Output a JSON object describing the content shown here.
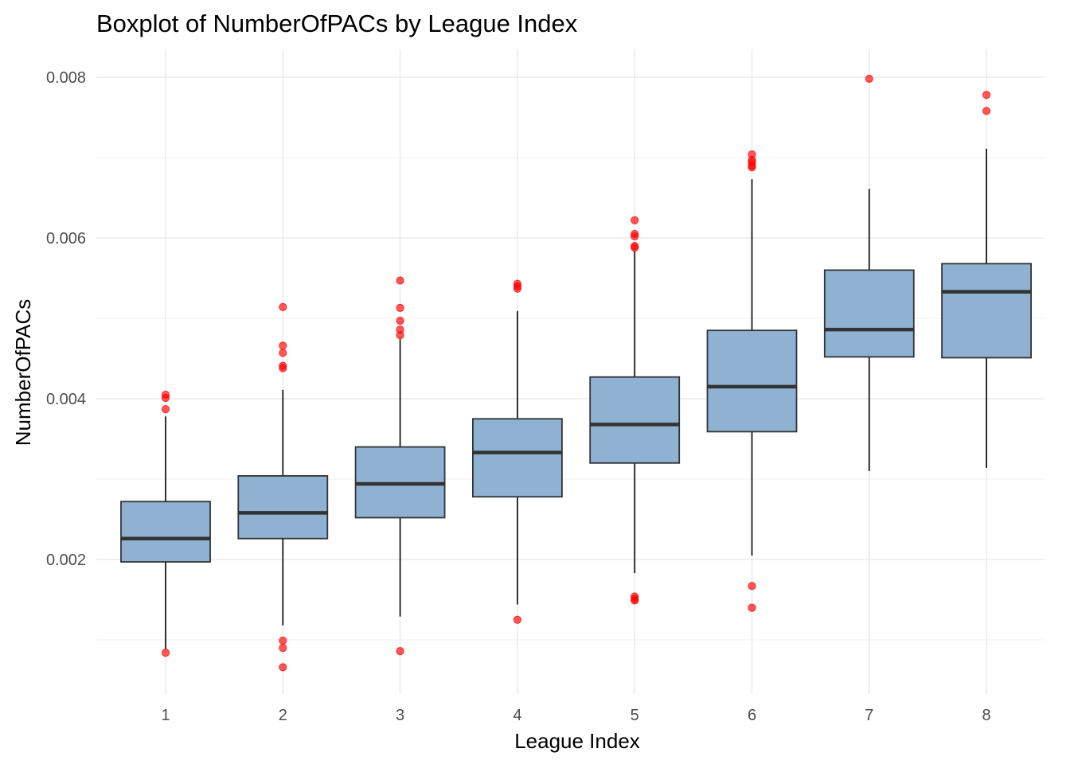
{
  "chart_data": {
    "type": "boxplot",
    "title": "Boxplot of NumberOfPACs by League Index",
    "xlabel": "League Index",
    "ylabel": "NumberOfPACs",
    "categories": [
      "1",
      "2",
      "3",
      "4",
      "5",
      "6",
      "7",
      "8"
    ],
    "ylim": [
      0.00062,
      0.00815
    ],
    "yticks": [
      0.002,
      0.004,
      0.006,
      0.008
    ],
    "ytick_labels": [
      "0.002",
      "0.004",
      "0.006",
      "0.008"
    ],
    "grid": true,
    "legend": "none",
    "colors": {
      "box_fill": "#8fb2d3",
      "box_edge": "#333333",
      "outlier": "#ff0000"
    },
    "boxes": [
      {
        "category": "1",
        "whisker_low": 0.00088,
        "q1": 0.00197,
        "median": 0.00226,
        "q3": 0.00272,
        "whisker_high": 0.00378,
        "outliers": [
          0.00405,
          0.00401,
          0.00387,
          0.00084
        ]
      },
      {
        "category": "2",
        "whisker_low": 0.00118,
        "q1": 0.00226,
        "median": 0.00258,
        "q3": 0.00304,
        "whisker_high": 0.00411,
        "outliers": [
          0.00514,
          0.00466,
          0.00457,
          0.00441,
          0.00438,
          0.00099,
          0.0009,
          0.00066
        ]
      },
      {
        "category": "3",
        "whisker_low": 0.00129,
        "q1": 0.00252,
        "median": 0.00294,
        "q3": 0.0034,
        "whisker_high": 0.00474,
        "outliers": [
          0.00547,
          0.00513,
          0.00497,
          0.00486,
          0.00479,
          0.00086
        ]
      },
      {
        "category": "4",
        "whisker_low": 0.00144,
        "q1": 0.00278,
        "median": 0.00333,
        "q3": 0.00375,
        "whisker_high": 0.00509,
        "outliers": [
          0.00543,
          0.0054,
          0.00537,
          0.00125
        ]
      },
      {
        "category": "5",
        "whisker_low": 0.00183,
        "q1": 0.0032,
        "median": 0.00368,
        "q3": 0.00427,
        "whisker_high": 0.00584,
        "outliers": [
          0.00622,
          0.00605,
          0.00602,
          0.0059,
          0.00588,
          0.00154,
          0.00151,
          0.00149
        ]
      },
      {
        "category": "6",
        "whisker_low": 0.00205,
        "q1": 0.00359,
        "median": 0.00415,
        "q3": 0.00485,
        "whisker_high": 0.00673,
        "outliers": [
          0.00704,
          0.00697,
          0.00694,
          0.0069,
          0.00688,
          0.00167,
          0.0014
        ]
      },
      {
        "category": "7",
        "whisker_low": 0.0031,
        "q1": 0.00452,
        "median": 0.00486,
        "q3": 0.0056,
        "whisker_high": 0.00661,
        "outliers": [
          0.00798
        ]
      },
      {
        "category": "8",
        "whisker_low": 0.00314,
        "q1": 0.00451,
        "median": 0.00533,
        "q3": 0.00568,
        "whisker_high": 0.00711,
        "outliers": [
          0.00778,
          0.00758
        ]
      }
    ]
  }
}
